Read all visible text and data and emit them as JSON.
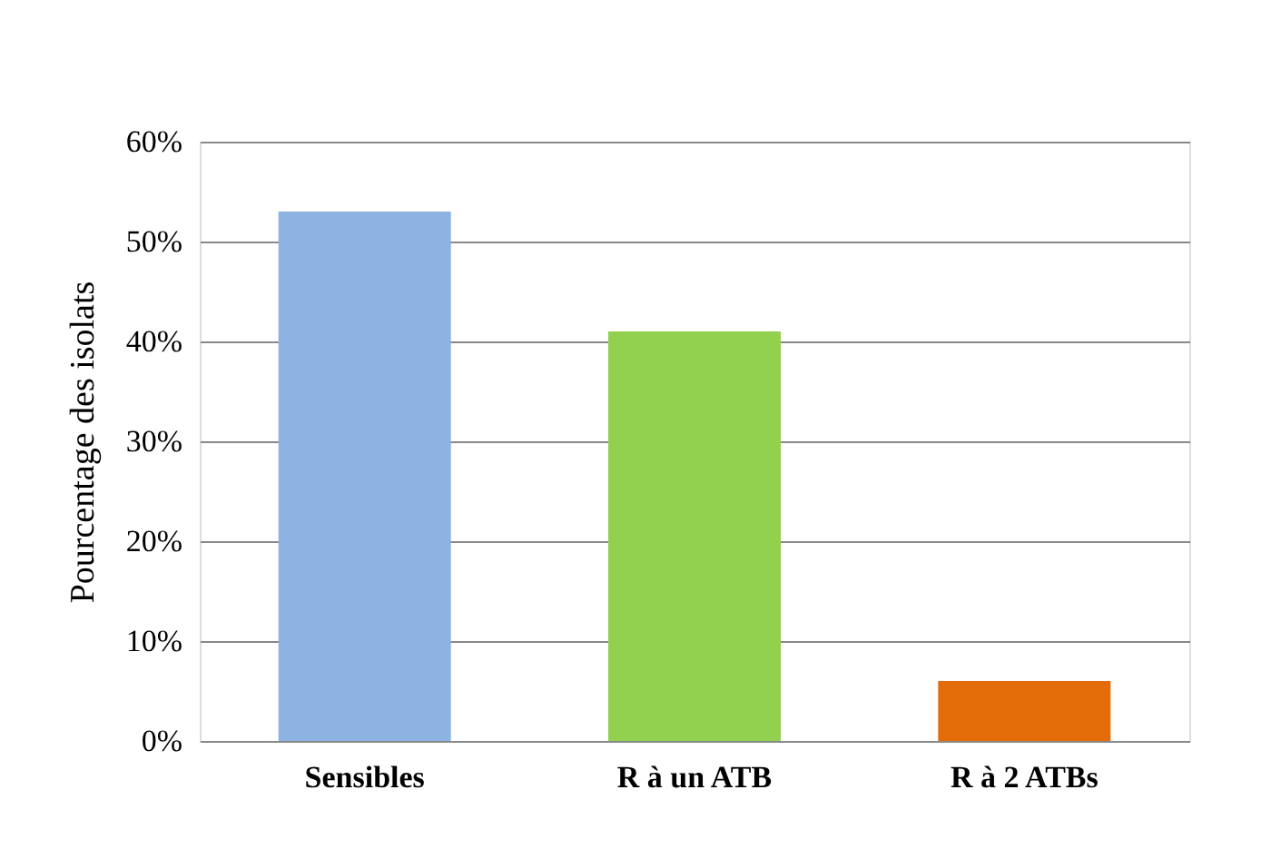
{
  "chart_data": {
    "type": "bar",
    "ylabel": "Pourcentage des isolats",
    "categories": [
      "Sensibles",
      "R à un ATB",
      "R à 2 ATBs"
    ],
    "values": [
      53,
      41,
      6
    ],
    "colors": [
      "#8db3e2",
      "#92d050",
      "#e36c09"
    ],
    "ylim": [
      0,
      60
    ],
    "yticks": [
      {
        "value": 0,
        "label": "0%"
      },
      {
        "value": 10,
        "label": "10%"
      },
      {
        "value": 20,
        "label": "20%"
      },
      {
        "value": 30,
        "label": "30%"
      },
      {
        "value": 40,
        "label": "40%"
      },
      {
        "value": 50,
        "label": "50%"
      },
      {
        "value": 60,
        "label": "60%"
      }
    ],
    "grid": "y"
  }
}
